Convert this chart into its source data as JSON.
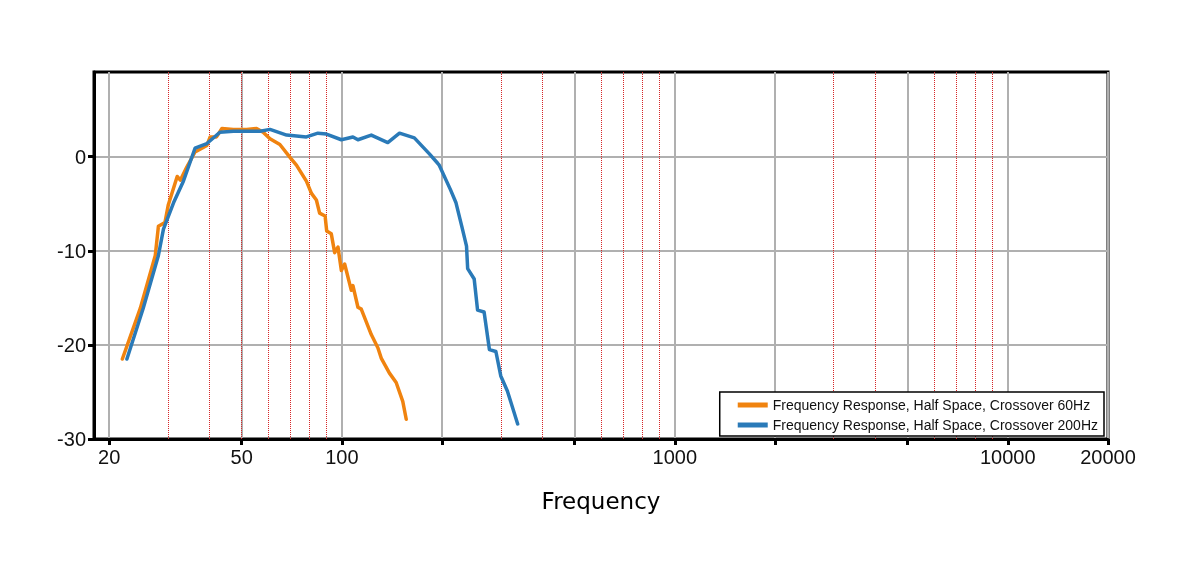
{
  "chart_data": {
    "type": "line",
    "xlabel": "Frequency",
    "log": "x",
    "xlim": [
      18,
      20000
    ],
    "xticks": [
      20,
      50,
      100,
      {
        "value": 200,
        "label": null
      },
      {
        "value": 500,
        "label": null
      },
      1000,
      {
        "value": 2000,
        "label": null
      },
      {
        "value": 5000,
        "label": null
      },
      10000,
      20000
    ],
    "ylim": [
      -30,
      9
    ],
    "yticks": [
      -30,
      -20,
      -10,
      0
    ],
    "grid": true,
    "legend": "bottom right",
    "marker": "none",
    "line_style": "solid",
    "ref_lines": [
      {
        "axis": "x",
        "value": 30,
        "color": "#d62728",
        "line_style": "dotted"
      },
      {
        "axis": "x",
        "value": 40,
        "color": "#d62728",
        "line_style": "dotted"
      },
      {
        "axis": "x",
        "value": 50,
        "color": "#d62728",
        "line_style": "dotted"
      },
      {
        "axis": "x",
        "value": 60,
        "color": "#d62728",
        "line_style": "dotted"
      },
      {
        "axis": "x",
        "value": 70,
        "color": "#d62728",
        "line_style": "dotted"
      },
      {
        "axis": "x",
        "value": 80,
        "color": "#d62728",
        "line_style": "dotted"
      },
      {
        "axis": "x",
        "value": 90,
        "color": "#d62728",
        "line_style": "dotted"
      },
      {
        "axis": "x",
        "value": 300,
        "color": "#d62728",
        "line_style": "dotted"
      },
      {
        "axis": "x",
        "value": 400,
        "color": "#d62728",
        "line_style": "dotted"
      },
      {
        "axis": "x",
        "value": 600,
        "color": "#d62728",
        "line_style": "dotted"
      },
      {
        "axis": "x",
        "value": 700,
        "color": "#d62728",
        "line_style": "dotted"
      },
      {
        "axis": "x",
        "value": 800,
        "color": "#d62728",
        "line_style": "dotted"
      },
      {
        "axis": "x",
        "value": 900,
        "color": "#d62728",
        "line_style": "dotted"
      },
      {
        "axis": "x",
        "value": 3000,
        "color": "#d62728",
        "line_style": "dotted"
      },
      {
        "axis": "x",
        "value": 4000,
        "color": "#d62728",
        "line_style": "dotted"
      },
      {
        "axis": "x",
        "value": 6000,
        "color": "#d62728",
        "line_style": "dotted"
      },
      {
        "axis": "x",
        "value": 7000,
        "color": "#d62728",
        "line_style": "dotted"
      },
      {
        "axis": "x",
        "value": 8000,
        "color": "#d62728",
        "line_style": "dotted"
      },
      {
        "axis": "x",
        "value": 9000,
        "color": "#d62728",
        "line_style": "dotted"
      }
    ],
    "series": [
      {
        "name": "Frequency Response, Half Space, Crossover 60Hz",
        "color": "#f0830f",
        "x": [
          21.9,
          24.8,
          27.5,
          28.1,
          29.4,
          30.1,
          32.0,
          32.7,
          34.2,
          36.2,
          39.3,
          40.2,
          42.0,
          43.6,
          47.2,
          51.7,
          55.4,
          58.0,
          60.8,
          65.1,
          70.3,
          73.0,
          78.2,
          81.0,
          83.8,
          85.7,
          89.0,
          90.0,
          92.9,
          95.1,
          97.3,
          99.6,
          101.9,
          106.7,
          107.9,
          111.7,
          114.3,
          122.5,
          128.2,
          131.2,
          138.9,
          145.5,
          152.3,
          156.0
        ],
        "values": [
          -21.5,
          -16.1,
          -10.5,
          -7.4,
          -7.0,
          -5.1,
          -2.1,
          -2.5,
          -1.1,
          0.5,
          1.2,
          2.1,
          2.1,
          3.0,
          2.9,
          2.9,
          3.0,
          2.6,
          1.9,
          1.3,
          -0.2,
          -0.9,
          -2.6,
          -3.9,
          -4.6,
          -6.0,
          -6.3,
          -7.9,
          -8.2,
          -10.2,
          -9.6,
          -12.1,
          -11.4,
          -14.2,
          -13.7,
          -16.0,
          -16.2,
          -18.9,
          -20.3,
          -21.4,
          -23.0,
          -24.0,
          -26.0,
          -27.9
        ]
      },
      {
        "name": "Frequency Response, Half Space, Crossover 200Hz",
        "color": "#2a7ab8",
        "x": [
          22.6,
          25.3,
          28.1,
          29.1,
          31.2,
          33.4,
          36.2,
          39.3,
          43.0,
          47.2,
          56.8,
          60.8,
          68.2,
          78.2,
          84.7,
          89.8,
          99.6,
          107.9,
          111.7,
          122.5,
          137.3,
          148.9,
          165.0,
          183.1,
          193.9,
          196,
          211.8,
          220.1,
          229.1,
          236.7,
          238.6,
          249.6,
          255.5,
          267.3,
          277.3,
          290.0,
          300.0,
          314.0,
          337.2
        ],
        "values": [
          -21.5,
          -16.1,
          -10.5,
          -7.7,
          -4.9,
          -2.6,
          0.9,
          1.4,
          2.6,
          2.7,
          2.7,
          2.9,
          2.3,
          2.1,
          2.5,
          2.4,
          1.8,
          2.1,
          1.8,
          2.3,
          1.5,
          2.5,
          2.0,
          0.3,
          -0.7,
          -0.9,
          -3.5,
          -4.9,
          -7.4,
          -9.5,
          -11.9,
          -13.0,
          -16.3,
          -16.5,
          -20.5,
          -20.7,
          -23.3,
          -24.9,
          -28.4
        ]
      }
    ]
  }
}
